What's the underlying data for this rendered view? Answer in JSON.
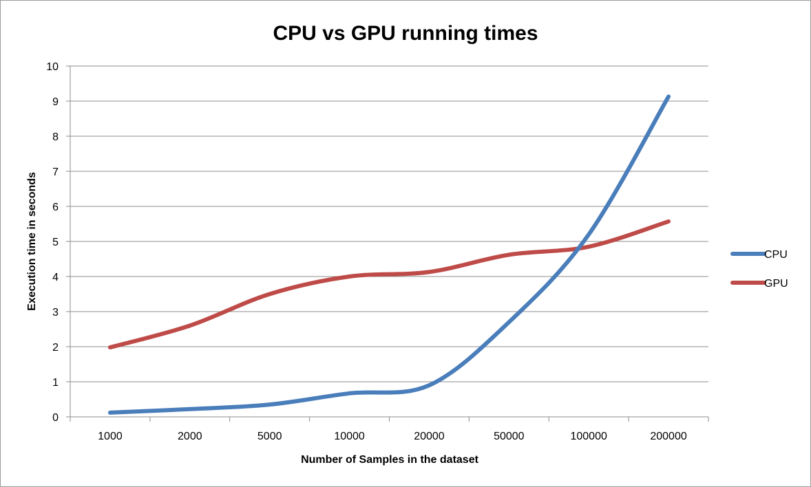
{
  "chart_data": {
    "type": "line",
    "title": "CPU vs GPU running times",
    "xlabel": "Number of Samples in the dataset",
    "ylabel": "Execution time in seconds",
    "categories": [
      "1000",
      "2000",
      "5000",
      "10000",
      "20000",
      "50000",
      "100000",
      "200000"
    ],
    "ylim": [
      0,
      10
    ],
    "yticks": [
      "0",
      "1",
      "2",
      "3",
      "4",
      "5",
      "6",
      "7",
      "8",
      "9",
      "10"
    ],
    "grid": true,
    "legend": "right",
    "series": [
      {
        "name": "CPU",
        "color": "#4a7ebb",
        "values": [
          0.12,
          0.22,
          0.35,
          0.67,
          0.9,
          2.7,
          5.2,
          9.13
        ]
      },
      {
        "name": "GPU",
        "color": "#be4b48",
        "values": [
          1.98,
          2.6,
          3.5,
          4.0,
          4.13,
          4.62,
          4.85,
          5.57
        ]
      }
    ]
  }
}
